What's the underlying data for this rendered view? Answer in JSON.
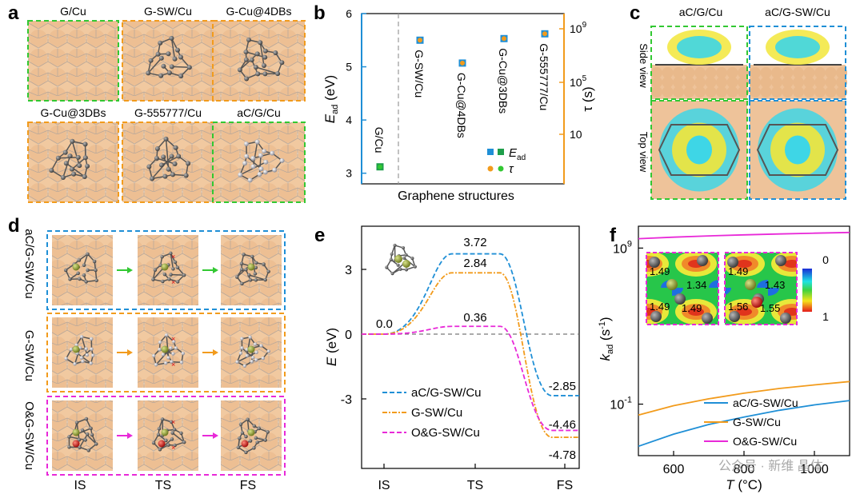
{
  "panels": {
    "a": {
      "label": "a",
      "tiles": [
        {
          "name": "G/Cu",
          "border": "green"
        },
        {
          "name": "G-SW/Cu",
          "border": "orange"
        },
        {
          "name": "G-Cu@4DBs",
          "border": "orange"
        },
        {
          "name": "G-Cu@3DBs",
          "border": "orange"
        },
        {
          "name": "G-555777/Cu",
          "border": "orange"
        },
        {
          "name": "aC/G/Cu",
          "border": "green"
        }
      ]
    },
    "b": {
      "label": "b",
      "xlabel": "Graphene structures",
      "ylabel": "E_ad (eV)",
      "ylabel_main": "E",
      "ylabel_sub": "ad",
      "ylabel_unit": " (eV)",
      "y2label": "τ (s)",
      "yticks": [
        "3",
        "4",
        "5",
        "6"
      ],
      "y2ticks": [
        "10",
        "10^5",
        "10^9"
      ],
      "y2tick_base": "10",
      "y2tick_exps": [
        "",
        "5",
        "9"
      ],
      "legend": {
        "ead": "E",
        "ead_sub": "ad",
        "tau": "τ"
      }
    },
    "c": {
      "label": "c",
      "columns": [
        "aC/G/Cu",
        "aC/G-SW/Cu"
      ],
      "rows": [
        "Side view",
        "Top view"
      ]
    },
    "d": {
      "label": "d",
      "rows": [
        "aC/G-SW/Cu",
        "G-SW/Cu",
        "O&G-SW/Cu"
      ],
      "columns": [
        "IS",
        "TS",
        "FS"
      ]
    },
    "e": {
      "label": "e",
      "ylabel": "E (eV)",
      "ylabel_main": "E",
      "ylabel_unit": " (eV)",
      "xticks": [
        "IS",
        "TS",
        "FS"
      ],
      "yticks": [
        "3",
        "0",
        "-3"
      ],
      "annotations": [
        "0.0",
        "3.72",
        "2.84",
        "0.36",
        "-2.85",
        "-4.46",
        "-4.78"
      ],
      "legend": [
        "aC/G-SW/Cu",
        "G-SW/Cu",
        "O&G-SW/Cu"
      ]
    },
    "f": {
      "label": "f",
      "ylabel": "k_ad (s^-1)",
      "ylabel_main": "k",
      "ylabel_sub": "ad",
      "ylabel_unit": " (s",
      "ylabel_exp": "-1",
      "xlabel": "T (°C)",
      "xlabel_main": "T",
      "xlabel_unit": " (°C)",
      "xticks": [
        "600",
        "800",
        "1000"
      ],
      "ytick_base": "10",
      "ytick_exps": [
        "9",
        "-1"
      ],
      "inset_left": [
        "1.49",
        "1.34",
        "1.49",
        "1.49"
      ],
      "inset_right": [
        "1.49",
        "1.43",
        "1.56",
        "1.55"
      ],
      "colorbar": [
        "0",
        "1"
      ],
      "legend": [
        "aC/G-SW/Cu",
        "G-SW/Cu",
        "O&G-SW/Cu"
      ]
    }
  },
  "watermark": "公众号 · 新维 晶体",
  "colors": {
    "blue": "#1f8fd6",
    "orange": "#f29b1c",
    "magenta": "#e829d8",
    "green": "#32c832",
    "cu": "#f1c9a0"
  },
  "chart_data": [
    {
      "type": "scatter",
      "title": "b",
      "categories": [
        "G/Cu",
        "G-SW/Cu",
        "G-Cu@4DBs",
        "G-Cu@3DBs",
        "G-555777/Cu"
      ],
      "series": [
        {
          "name": "E_ad",
          "values": [
            3.12,
            5.5,
            5.07,
            5.53,
            5.62
          ]
        }
      ],
      "xlabel": "Graphene structures",
      "ylabel": "E_ad (eV)",
      "ylim": [
        2.8,
        6.0
      ],
      "y2label": "τ (s)",
      "y2scale": "log"
    },
    {
      "type": "line",
      "title": "e",
      "categories": [
        "IS",
        "TS",
        "FS"
      ],
      "series": [
        {
          "name": "aC/G-SW/Cu",
          "values": [
            0.0,
            3.72,
            -2.85
          ]
        },
        {
          "name": "G-SW/Cu",
          "values": [
            0.0,
            2.84,
            -4.78
          ]
        },
        {
          "name": "O&G-SW/Cu",
          "values": [
            0.0,
            0.36,
            -4.46
          ]
        }
      ],
      "xlabel": "",
      "ylabel": "E (eV)",
      "ylim": [
        -5.8,
        5.0
      ]
    },
    {
      "type": "line",
      "title": "f",
      "x": [
        500,
        600,
        700,
        800,
        900,
        1000,
        1100
      ],
      "series": [
        {
          "name": "aC/G-SW/Cu",
          "values": [
            0.0002,
            0.0012,
            0.005,
            0.015,
            0.04,
            0.09,
            0.17
          ]
        },
        {
          "name": "G-SW/Cu",
          "values": [
            0.02,
            0.08,
            0.22,
            0.5,
            1.0,
            1.7,
            2.8
          ]
        },
        {
          "name": "O&G-SW/Cu",
          "values": [
            4000000000,
            5000000000,
            6000000000,
            7000000000,
            8000000000,
            9000000000,
            10000000000
          ]
        }
      ],
      "xlabel": "T (°C)",
      "ylabel": "k_ad (s^-1)",
      "yscale": "log",
      "xlim": [
        500,
        1100
      ]
    }
  ]
}
